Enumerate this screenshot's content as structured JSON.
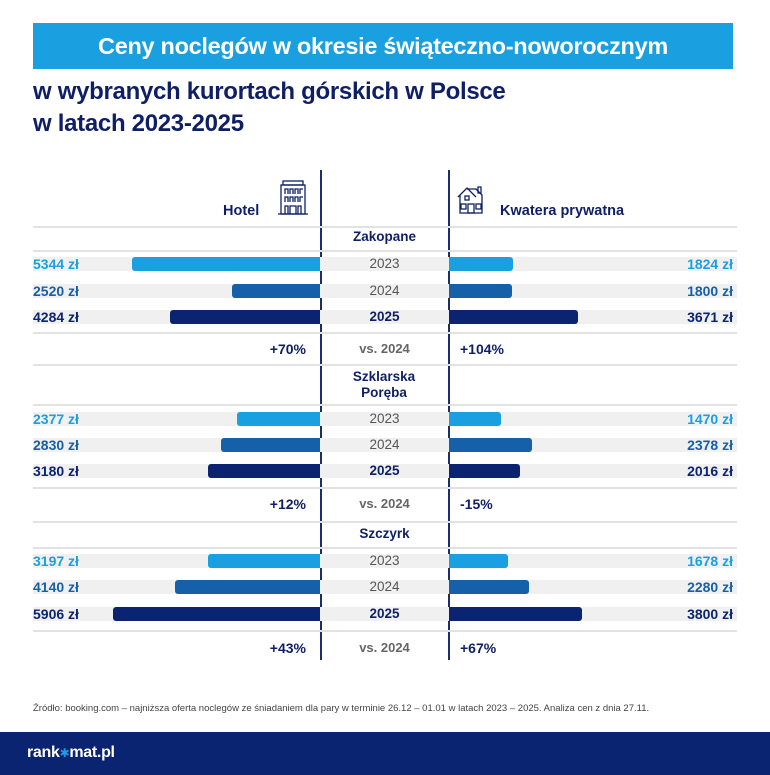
{
  "title": "Ceny noclegów w okresie świąteczno-noworocznym",
  "subtitle_lines": [
    "w wybranych kurortach górskich w Polsce",
    "w latach 2023-2025"
  ],
  "colors": {
    "title_band": "#1aa0e0",
    "navy": "#0e1f66",
    "footer": "#0a2472",
    "y2023": "#1aa0e0",
    "y2024": "#1560a8",
    "y2025": "#0a2472"
  },
  "chart_data": {
    "type": "bar",
    "orientation": "horizontal-butterfly",
    "columns": [
      {
        "label": "Hotel",
        "icon": "hotel-building-icon"
      },
      {
        "label": "Kwatera prywatna",
        "icon": "house-icon"
      }
    ],
    "years": [
      "2023",
      "2024",
      "2025"
    ],
    "comparison_label": "vs. 2024",
    "unit": "zł",
    "groups": [
      {
        "city": "Zakopane",
        "hotel": [
          5344,
          2520,
          4284
        ],
        "kwatera": [
          1824,
          1800,
          3671
        ],
        "hotel_labels": [
          "5344 zł",
          "2520 zł",
          "4284 zł"
        ],
        "kwatera_labels": [
          "1824 zł",
          "1800 zł",
          "3671 zł"
        ],
        "hotel_change": "+70%",
        "kwatera_change": "+104%"
      },
      {
        "city": "Szklarska Poręba",
        "hotel": [
          2377,
          2830,
          3180
        ],
        "kwatera": [
          1470,
          2378,
          2016
        ],
        "hotel_labels": [
          "2377 zł",
          "2830 zł",
          "3180 zł"
        ],
        "kwatera_labels": [
          "1470 zł",
          "2378 zł",
          "2016 zł"
        ],
        "hotel_change": "+12%",
        "kwatera_change": "-15%"
      },
      {
        "city": "Szczyrk",
        "hotel": [
          3197,
          4140,
          5906
        ],
        "kwatera": [
          1678,
          2280,
          3800
        ],
        "hotel_labels": [
          "3197 zł",
          "4140 zł",
          "5906 zł"
        ],
        "kwatera_labels": [
          "1678 zł",
          "2280 zł",
          "3800 zł"
        ],
        "hotel_change": "+43%",
        "kwatera_change": "+67%"
      }
    ]
  },
  "source": "Źródło: booking.com – najniższa oferta noclegów ze śniadaniem dla pary w terminie 26.12 – 01.01 w latach 2023 – 2025. Analiza cen z dnia 27.11.",
  "logo": {
    "left": "rank",
    "right": "mat.pl",
    "text": "rankomat.pl"
  }
}
